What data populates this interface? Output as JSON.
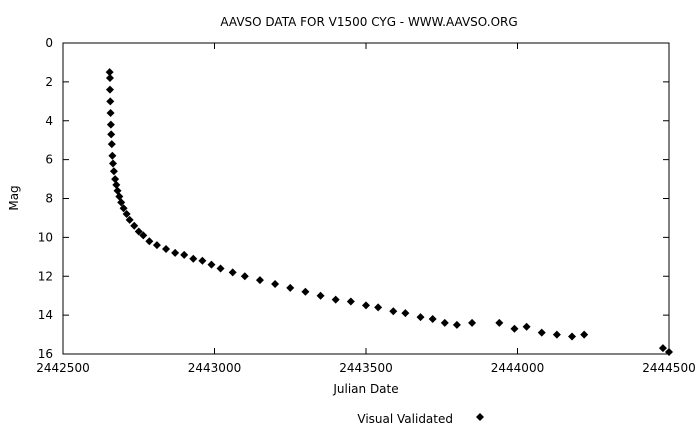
{
  "chart_data": {
    "type": "scatter",
    "title": "AAVSO DATA FOR V1500 CYG - WWW.AAVSO.ORG",
    "xlabel": "Julian Date",
    "ylabel": "Mag",
    "xlim": [
      2442500,
      2444500
    ],
    "ylim": [
      16,
      0
    ],
    "y_inverted": true,
    "xticks": [
      "2442500",
      "2443000",
      "2443500",
      "2444000",
      "2444500"
    ],
    "yticks": [
      "0",
      "2",
      "4",
      "6",
      "8",
      "10",
      "12",
      "14",
      "16"
    ],
    "grid": false,
    "legend_position": "bottom-center",
    "series": [
      {
        "name": "Visual Validated",
        "marker": "diamond",
        "color": "#000000",
        "points": [
          [
            2442654,
            1.5
          ],
          [
            2442655,
            1.8
          ],
          [
            2442655,
            2.4
          ],
          [
            2442656,
            3.0
          ],
          [
            2442657,
            3.6
          ],
          [
            2442658,
            4.2
          ],
          [
            2442659,
            4.7
          ],
          [
            2442661,
            5.2
          ],
          [
            2442663,
            5.8
          ],
          [
            2442665,
            6.2
          ],
          [
            2442668,
            6.6
          ],
          [
            2442672,
            7.0
          ],
          [
            2442676,
            7.3
          ],
          [
            2442680,
            7.6
          ],
          [
            2442686,
            7.9
          ],
          [
            2442692,
            8.2
          ],
          [
            2442700,
            8.5
          ],
          [
            2442710,
            8.8
          ],
          [
            2442720,
            9.1
          ],
          [
            2442735,
            9.4
          ],
          [
            2442750,
            9.7
          ],
          [
            2442765,
            9.9
          ],
          [
            2442785,
            10.2
          ],
          [
            2442810,
            10.4
          ],
          [
            2442840,
            10.6
          ],
          [
            2442870,
            10.8
          ],
          [
            2442900,
            10.9
          ],
          [
            2442930,
            11.1
          ],
          [
            2442960,
            11.2
          ],
          [
            2442990,
            11.4
          ],
          [
            2443020,
            11.6
          ],
          [
            2443060,
            11.8
          ],
          [
            2443100,
            12.0
          ],
          [
            2443150,
            12.2
          ],
          [
            2443200,
            12.4
          ],
          [
            2443250,
            12.6
          ],
          [
            2443300,
            12.8
          ],
          [
            2443350,
            13.0
          ],
          [
            2443400,
            13.2
          ],
          [
            2443450,
            13.3
          ],
          [
            2443500,
            13.5
          ],
          [
            2443540,
            13.6
          ],
          [
            2443590,
            13.8
          ],
          [
            2443630,
            13.9
          ],
          [
            2443680,
            14.1
          ],
          [
            2443720,
            14.2
          ],
          [
            2443760,
            14.4
          ],
          [
            2443800,
            14.5
          ],
          [
            2443850,
            14.4
          ],
          [
            2443940,
            14.4
          ],
          [
            2443990,
            14.7
          ],
          [
            2444030,
            14.6
          ],
          [
            2444080,
            14.9
          ],
          [
            2444130,
            15.0
          ],
          [
            2444180,
            15.1
          ],
          [
            2444220,
            15.0
          ],
          [
            2444480,
            15.7
          ],
          [
            2444500,
            15.9
          ]
        ]
      }
    ]
  }
}
